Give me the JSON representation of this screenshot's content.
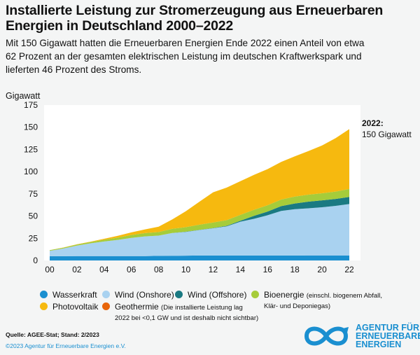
{
  "title_line1": "Installierte Leistung zur Stromerzeugung aus Erneuerbaren",
  "title_line2": "Energien in Deutschland 2000–2022",
  "subtitle_line1": "Mit 150 Gigawatt hatten die Erneuerbaren Energien Ende 2022 einen Anteil von etwa",
  "subtitle_line2": "62 Prozent an der gesamten elektrischen Leistung im deutschen Kraftwerkspark und",
  "subtitle_line3": "lieferten 46 Prozent des Stroms.",
  "chart_data": {
    "type": "area",
    "stacked": true,
    "ylabel": "Gigawatt",
    "ylim": [
      0,
      175
    ],
    "yticks": [
      0,
      25,
      50,
      75,
      100,
      125,
      150,
      175
    ],
    "x": [
      "00",
      "01",
      "02",
      "03",
      "04",
      "05",
      "06",
      "07",
      "08",
      "09",
      "10",
      "11",
      "12",
      "13",
      "14",
      "15",
      "16",
      "17",
      "18",
      "19",
      "20",
      "21",
      "22"
    ],
    "xticks": [
      "00",
      "02",
      "04",
      "06",
      "08",
      "10",
      "12",
      "14",
      "16",
      "18",
      "20",
      "22"
    ],
    "grid": false,
    "annotation": {
      "line1": "2022:",
      "line2": "150 Gigawatt"
    },
    "series": [
      {
        "name": "Wasserkraft",
        "color": "#1a8fd0",
        "values": [
          4.8,
          4.8,
          4.9,
          4.9,
          5.0,
          5.0,
          5.0,
          5.0,
          5.2,
          5.3,
          5.4,
          5.6,
          5.6,
          5.6,
          5.6,
          5.6,
          5.6,
          5.6,
          5.6,
          5.5,
          5.5,
          5.5,
          5.5
        ]
      },
      {
        "name": "Wind (Onshore)",
        "color": "#a9d2f0",
        "values": [
          6.1,
          8.7,
          11.9,
          14.4,
          16.4,
          18.2,
          20.5,
          22.1,
          22.8,
          25.6,
          26.8,
          28.7,
          30.7,
          32.9,
          38.1,
          41.3,
          45.3,
          50.2,
          52.2,
          53.2,
          54.4,
          56.0,
          58.0
        ]
      },
      {
        "name": "Wind (Offshore)",
        "color": "#1a7a82",
        "values": [
          0,
          0,
          0,
          0,
          0,
          0,
          0,
          0,
          0,
          0.1,
          0.2,
          0.2,
          0.3,
          0.5,
          1.0,
          3.3,
          4.2,
          5.4,
          6.4,
          7.5,
          7.8,
          7.8,
          8.1
        ]
      },
      {
        "name": "Bioenergie",
        "color": "#a6cc3a",
        "values": [
          0.7,
          0.9,
          1.1,
          1.5,
          1.9,
          2.5,
          3.2,
          3.7,
          4.0,
          4.6,
          5.1,
          5.8,
          6.1,
          6.4,
          6.6,
          6.9,
          7.1,
          7.4,
          7.8,
          7.9,
          8.0,
          8.3,
          8.9
        ]
      },
      {
        "name": "Photovoltaik",
        "color": "#f6b90f",
        "values": [
          0.1,
          0.2,
          0.3,
          0.4,
          1.1,
          2.1,
          2.9,
          4.2,
          6.1,
          10.6,
          18.0,
          25.9,
          34.1,
          36.7,
          37.9,
          39.2,
          40.7,
          42.3,
          45.2,
          49.0,
          53.7,
          60.1,
          67.4
        ]
      },
      {
        "name": "Geothermie",
        "color": "#e8650a",
        "values": [
          0,
          0,
          0,
          0,
          0,
          0,
          0,
          0,
          0,
          0,
          0,
          0,
          0,
          0,
          0,
          0,
          0,
          0,
          0,
          0,
          0,
          0,
          0
        ]
      }
    ]
  },
  "legend": {
    "items": [
      {
        "label": "Wasserkraft",
        "note": "",
        "color": "#1a8fd0"
      },
      {
        "label": "Wind (Onshore)",
        "note": "",
        "color": "#a9d2f0"
      },
      {
        "label": "Wind (Offshore)",
        "note": "",
        "color": "#1a7a82"
      },
      {
        "label": "Bioenergie",
        "note_line1": "(einschl. biogenem Abfall,",
        "note_line2": "Klär- und Deponiegas)",
        "color": "#a6cc3a"
      },
      {
        "label": "Photovoltaik",
        "note": "",
        "color": "#f6b90f"
      },
      {
        "label": "Geothermie",
        "note_line1": "(Die installierte Leistung lag",
        "note_line2": "2022 bei <0,1 GW und ist deshalb nicht sichtbar)",
        "color": "#e8650a"
      }
    ]
  },
  "footer": {
    "source": "Quelle: AGEE-Stat; Stand: 2/2023",
    "copyright": "©2023 Agentur für Erneuerbare Energien e.V."
  },
  "logo": {
    "line1": "AGENTUR FÜR",
    "line2": "ERNEUERBARE",
    "line3": "ENERGIEN",
    "color": "#1a8fd0"
  }
}
